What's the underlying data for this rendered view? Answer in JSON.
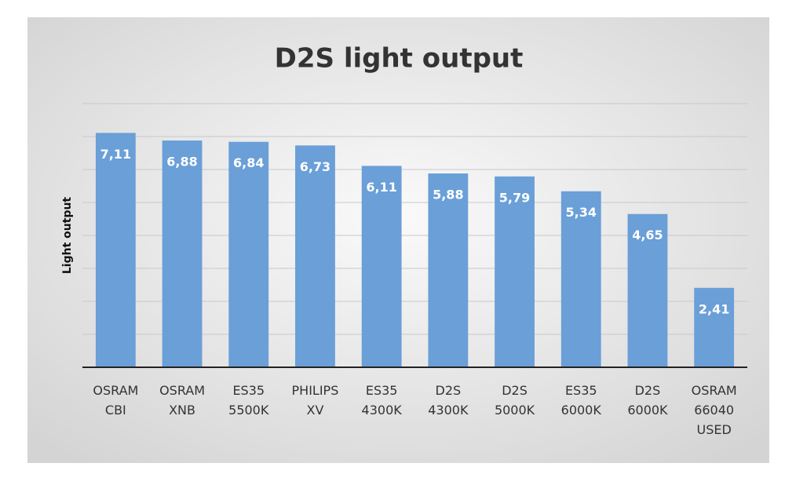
{
  "chart_data": {
    "type": "bar",
    "title": "D2S light output",
    "y_label": "Light output",
    "categories": [
      "OSRAM CBI",
      "OSRAM XNB",
      "ES35 5500K",
      "PHILIPS XV",
      "ES35 4300K",
      "D2S 4300K",
      "D2S 5000K",
      "ES35 6000K",
      "D2S 6000K",
      "OSRAM 66040 USED"
    ],
    "values": [
      7.11,
      6.88,
      6.84,
      6.73,
      6.11,
      5.88,
      5.79,
      5.34,
      4.65,
      2.41
    ],
    "value_labels": [
      "7,11",
      "6,88",
      "6,84",
      "6,73",
      "6,11",
      "5,88",
      "5,79",
      "5,34",
      "4,65",
      "2,41"
    ],
    "color": "#6a9fd8",
    "ylim": [
      0,
      8
    ],
    "yticks": [
      0,
      1,
      2,
      3,
      4,
      5,
      6,
      7,
      8
    ],
    "grid": true,
    "y_tick_labels": false
  }
}
